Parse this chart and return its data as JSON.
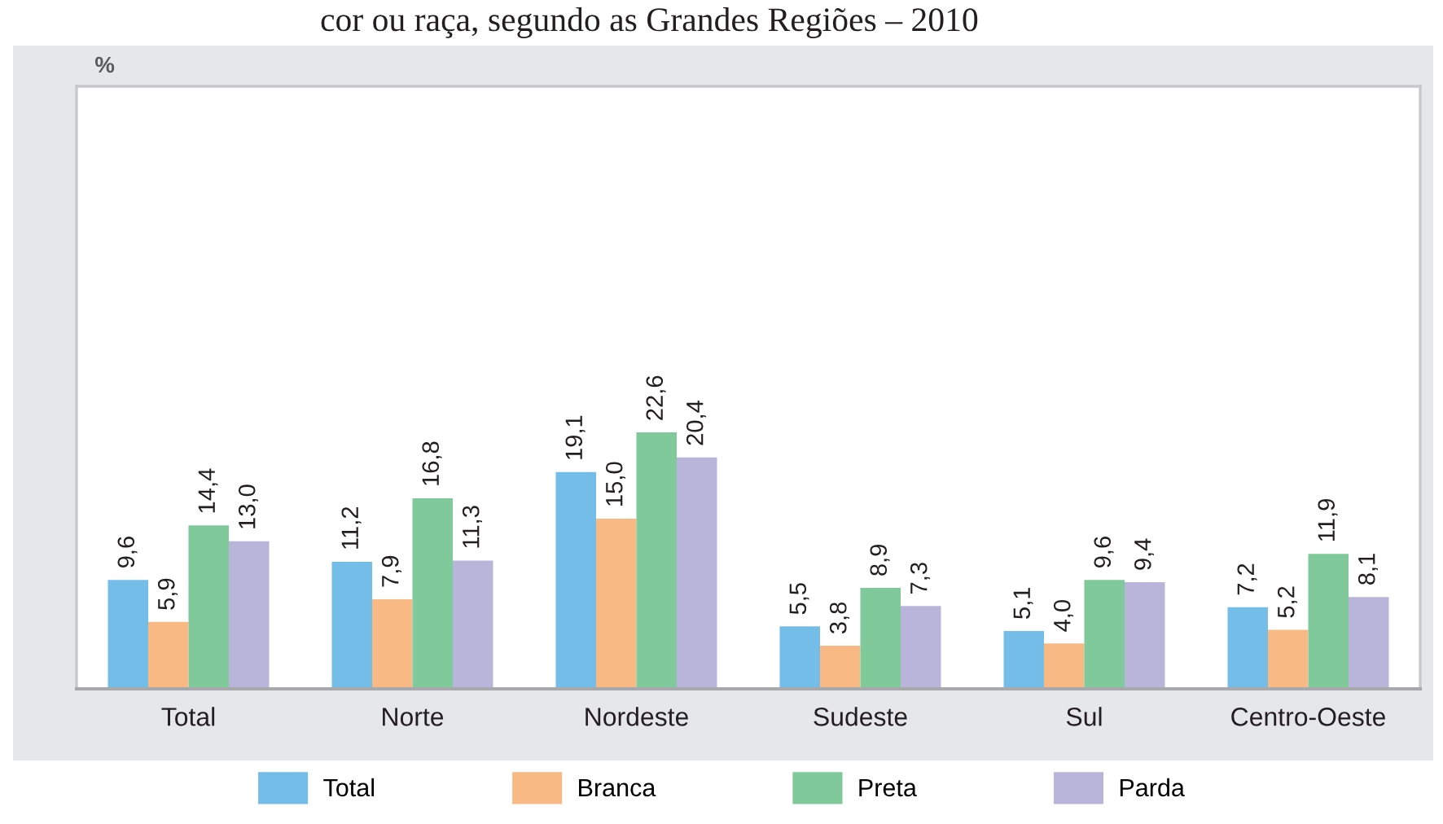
{
  "chart_data": {
    "type": "bar",
    "title": "cor ou raça, segundo as Grandes Regiões – 2010",
    "annotations": [
      "%"
    ],
    "categories": [
      "Total",
      "Norte",
      "Nordeste",
      "Sudeste",
      "Sul",
      "Centro-Oeste"
    ],
    "series": [
      {
        "name": "Total",
        "color": "#74bde8",
        "values": [
          9.6,
          11.2,
          19.1,
          5.5,
          5.1,
          7.2
        ],
        "value_labels": [
          "9,6",
          "11,2",
          "19,1",
          "5,5",
          "5,1",
          "7,2"
        ]
      },
      {
        "name": "Branca",
        "color": "#f9b985",
        "values": [
          5.9,
          7.9,
          15.0,
          3.8,
          4.0,
          5.2
        ],
        "value_labels": [
          "5,9",
          "7,9",
          "15,0",
          "3,8",
          "4,0",
          "5,2"
        ]
      },
      {
        "name": "Preta",
        "color": "#80c99b",
        "values": [
          14.4,
          16.8,
          22.6,
          8.9,
          9.6,
          11.9
        ],
        "value_labels": [
          "14,4",
          "16,8",
          "22,6",
          "8,9",
          "9,6",
          "11,9"
        ]
      },
      {
        "name": "Parda",
        "color": "#b9b5da",
        "values": [
          13.0,
          11.3,
          20.4,
          7.3,
          9.4,
          8.1
        ],
        "value_labels": [
          "13,0",
          "11,3",
          "20,4",
          "7,3",
          "9,4",
          "8,1"
        ]
      }
    ],
    "tick_labels": "x",
    "legend": "bottom"
  }
}
